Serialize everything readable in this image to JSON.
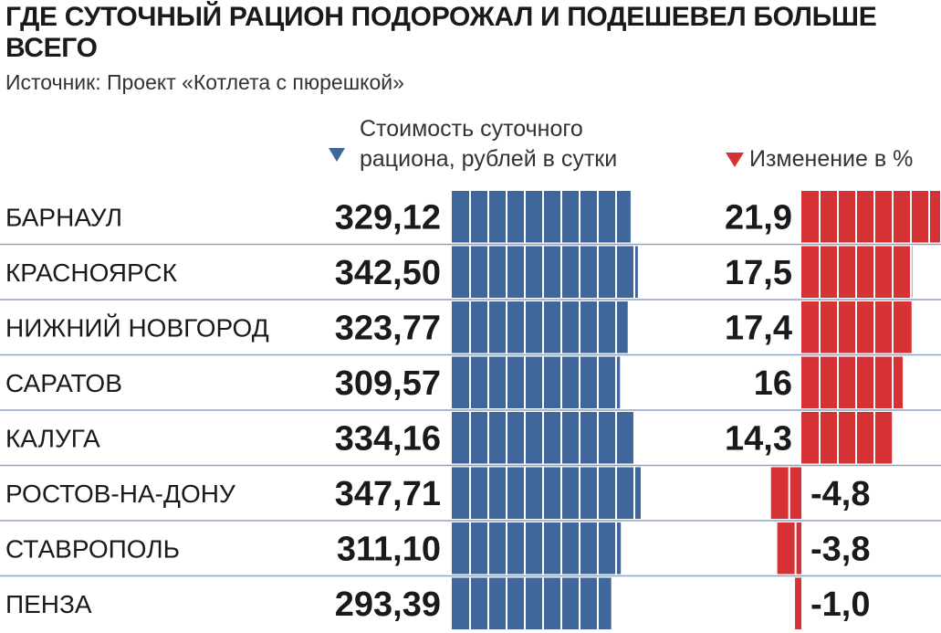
{
  "title": "ГДЕ СУТОЧНЫЙ РАЦИОН ПОДОРОЖАЛ И ПОДЕШЕВЕЛ БОЛЬШЕ ВСЕГО",
  "source": "Источник: Проект «Котлета с пюрешкой»",
  "legend": {
    "cost_header": "Стоимость суточного рациона, рублей в сутки",
    "change_header": "Изменение в %"
  },
  "colors": {
    "cost_bar": "#3f679b",
    "change_bar": "#d63235",
    "row_divider": "#8fa4bd"
  },
  "chart_data": {
    "type": "bar",
    "categories": [
      "БАРНАУЛ",
      "КРАСНОЯРСК",
      "НИЖНИЙ НОВГОРОД",
      "САРАТОВ",
      "КАЛУГА",
      "РОСТОВ-НА-ДОНУ",
      "СТАВРОПОЛЬ",
      "ПЕНЗА"
    ],
    "series": [
      {
        "name": "Стоимость суточного рациона, рублей в сутки",
        "values": [
          329.12,
          342.5,
          323.77,
          309.57,
          334.16,
          347.71,
          311.1,
          293.39
        ],
        "labels": [
          "329,12",
          "342,50",
          "323,77",
          "309,57",
          "334,16",
          "347,71",
          "311,10",
          "293,39"
        ]
      },
      {
        "name": "Изменение в %",
        "values": [
          21.9,
          17.5,
          17.4,
          16,
          14.3,
          -4.8,
          -3.8,
          -1.0
        ],
        "labels": [
          "21,9",
          "17,5",
          "17,4",
          "16",
          "14,3",
          "-4,8",
          "-3,8",
          "-1,0"
        ]
      }
    ]
  }
}
